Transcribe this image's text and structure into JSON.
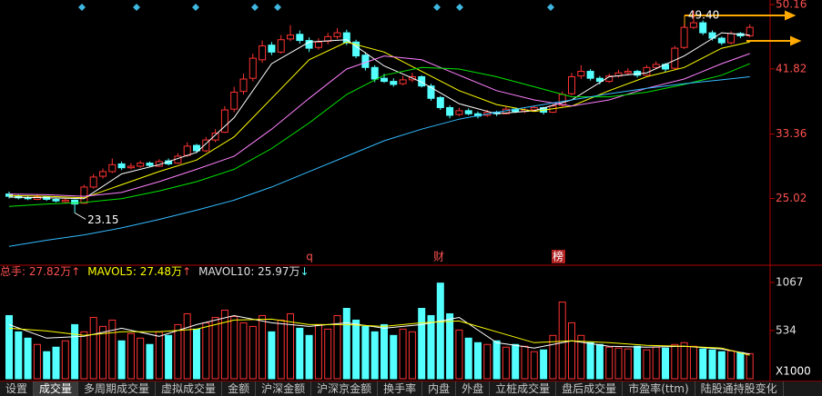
{
  "chart_data": [
    {
      "type": "candlestick",
      "open": [
        25.6,
        25.3,
        25.1,
        24.9,
        25.2,
        24.9,
        24.6,
        24.8,
        24.4,
        26.5,
        27.9,
        28.5,
        29.5,
        29.0,
        29.2,
        29.6,
        29.2,
        29.9,
        29.6,
        30.6,
        31.9,
        31.2,
        32.6,
        33.6,
        36.6,
        38.9,
        40.6,
        43.0,
        44.9,
        44.0,
        45.7,
        46.3,
        45.5,
        44.6,
        45.4,
        46.0,
        46.5,
        45.3,
        43.6,
        42.0,
        40.6,
        40.2,
        39.9,
        40.4,
        40.8,
        39.6,
        38.1,
        36.8,
        35.9,
        36.4,
        36.0,
        35.8,
        36.2,
        36.0,
        36.6,
        36.3,
        36.5,
        36.8,
        36.2,
        37.1,
        38.6,
        40.9,
        41.5,
        40.6,
        40.2,
        40.9,
        41.3,
        41.5,
        41.0,
        42.0,
        42.4,
        41.9,
        44.6,
        47.2,
        47.8,
        46.5,
        45.8,
        45.2,
        46.4,
        46.1
      ],
      "high": [
        25.9,
        25.5,
        25.4,
        25.5,
        25.3,
        25.1,
        25.0,
        24.9,
        26.8,
        28.2,
        28.9,
        30.2,
        29.8,
        29.6,
        29.9,
        29.8,
        30.1,
        30.2,
        30.9,
        32.3,
        32.1,
        33.0,
        34.0,
        37.0,
        39.5,
        41.2,
        43.8,
        45.5,
        45.3,
        46.2,
        47.5,
        46.8,
        45.9,
        45.8,
        46.5,
        47.1,
        46.9,
        45.6,
        44.0,
        42.3,
        41.2,
        40.6,
        40.9,
        41.3,
        41.0,
        39.9,
        38.3,
        37.1,
        36.8,
        36.7,
        36.3,
        36.5,
        36.4,
        36.9,
        36.8,
        36.8,
        37.1,
        36.9,
        37.3,
        38.9,
        41.3,
        42.3,
        41.8,
        40.9,
        41.2,
        41.7,
        41.9,
        41.7,
        42.3,
        42.8,
        42.6,
        44.8,
        47.6,
        49.4,
        48.1,
        46.8,
        46.0,
        46.7,
        46.6,
        47.6
      ],
      "low": [
        25.0,
        24.9,
        24.8,
        24.8,
        24.7,
        24.5,
        24.4,
        23.15,
        24.3,
        26.3,
        27.6,
        28.3,
        28.7,
        28.8,
        29.0,
        29.1,
        29.1,
        29.3,
        29.5,
        30.4,
        30.9,
        31.0,
        32.3,
        33.5,
        36.2,
        38.5,
        40.2,
        42.6,
        43.6,
        43.8,
        45.4,
        45.1,
        44.0,
        44.3,
        45.0,
        45.7,
        44.9,
        43.2,
        41.6,
        40.1,
        40.0,
        39.5,
        39.7,
        40.1,
        39.4,
        37.7,
        36.5,
        35.4,
        35.7,
        35.8,
        35.4,
        35.6,
        35.7,
        35.9,
        36.1,
        36.1,
        36.3,
        35.9,
        36.1,
        36.9,
        38.4,
        40.5,
        40.3,
        39.8,
        40.0,
        40.7,
        41.0,
        40.7,
        40.9,
        41.8,
        41.4,
        41.7,
        44.4,
        47.0,
        46.2,
        45.5,
        44.9,
        45.0,
        45.8,
        45.9
      ],
      "close": [
        25.3,
        25.1,
        25.0,
        25.2,
        24.9,
        24.7,
        24.8,
        24.3,
        26.5,
        27.8,
        28.5,
        29.4,
        29.0,
        29.2,
        29.6,
        29.3,
        29.8,
        29.5,
        30.5,
        31.8,
        31.2,
        32.6,
        33.5,
        36.5,
        38.8,
        40.5,
        43.2,
        44.8,
        44.0,
        45.6,
        46.2,
        45.5,
        44.5,
        45.3,
        46.0,
        46.5,
        45.2,
        43.5,
        42.0,
        40.5,
        40.2,
        39.8,
        40.4,
        40.8,
        39.6,
        38.0,
        36.8,
        35.8,
        36.4,
        36.0,
        35.7,
        36.2,
        36.0,
        36.6,
        36.3,
        36.5,
        36.8,
        36.2,
        37.0,
        38.5,
        40.8,
        41.5,
        40.6,
        40.2,
        40.9,
        41.3,
        41.5,
        41.0,
        42.0,
        42.4,
        41.8,
        44.5,
        47.2,
        47.8,
        46.5,
        45.8,
        45.2,
        46.4,
        46.1,
        47.2
      ],
      "up_color": "#ff3232",
      "down_color": "#54ffff",
      "ylim": [
        16.6,
        50.75
      ],
      "yticks": [
        {
          "value": 50.16,
          "label": "50.16"
        },
        {
          "value": 41.82,
          "label": "41.82"
        },
        {
          "value": 33.36,
          "label": "33.36"
        },
        {
          "value": 25.02,
          "label": "25.02"
        }
      ],
      "ma_lines": [
        {
          "color": "#ffffff",
          "x": [
            0,
            4,
            8,
            12,
            16,
            20,
            24,
            28,
            32,
            36,
            40,
            44,
            48,
            52,
            56,
            60,
            64,
            68,
            72,
            76,
            79
          ],
          "values": [
            25.2,
            25.1,
            25.0,
            28.2,
            29.4,
            31.0,
            35.5,
            42.5,
            45.3,
            45.6,
            42.2,
            40.1,
            37.3,
            36.0,
            36.4,
            37.8,
            40.8,
            41.3,
            43.5,
            46.5,
            46.2
          ]
        },
        {
          "color": "#ffff00",
          "x": [
            0,
            4,
            8,
            12,
            16,
            20,
            24,
            28,
            32,
            36,
            40,
            44,
            48,
            52,
            56,
            60,
            64,
            68,
            72,
            76,
            79
          ],
          "values": [
            25.4,
            25.3,
            25.1,
            26.8,
            28.5,
            30.0,
            33.0,
            38.0,
            43.0,
            45.3,
            44.0,
            41.5,
            39.0,
            37.2,
            36.3,
            37.0,
            39.0,
            40.8,
            42.0,
            44.5,
            45.3
          ]
        },
        {
          "color": "#ff80ff",
          "x": [
            0,
            4,
            8,
            12,
            16,
            20,
            24,
            28,
            32,
            36,
            40,
            44,
            48,
            52,
            56,
            60,
            64,
            68,
            72,
            76,
            79
          ],
          "values": [
            25.6,
            25.5,
            25.3,
            25.8,
            27.2,
            28.8,
            30.5,
            34.0,
            38.0,
            41.8,
            43.5,
            43.0,
            41.0,
            39.0,
            37.8,
            37.0,
            37.8,
            39.3,
            40.5,
            42.5,
            43.8
          ]
        },
        {
          "color": "#00e600",
          "x": [
            0,
            4,
            8,
            12,
            16,
            20,
            24,
            28,
            32,
            36,
            40,
            44,
            48,
            52,
            56,
            60,
            64,
            68,
            72,
            76,
            79
          ],
          "values": [
            24.0,
            24.3,
            24.5,
            25.0,
            26.0,
            27.2,
            28.8,
            31.5,
            34.8,
            38.5,
            41.0,
            42.0,
            41.8,
            40.8,
            39.5,
            38.2,
            38.2,
            38.8,
            39.8,
            41.0,
            42.5
          ]
        },
        {
          "color": "#33bbff",
          "x": [
            0,
            4,
            8,
            12,
            16,
            20,
            24,
            28,
            32,
            36,
            40,
            44,
            48,
            52,
            56,
            60,
            64,
            68,
            72,
            76,
            79
          ],
          "values": [
            18.8,
            19.6,
            20.3,
            21.2,
            22.3,
            23.5,
            24.8,
            26.5,
            28.5,
            30.5,
            32.5,
            34.0,
            35.3,
            36.2,
            37.0,
            37.8,
            38.6,
            39.3,
            39.9,
            40.4,
            40.8
          ]
        }
      ],
      "high_label": "49.40",
      "low_label": "23.15",
      "markers": [
        "q",
        "财",
        "榜"
      ]
    },
    {
      "type": "bar",
      "header": [
        {
          "text": "总手: 27.82万",
          "arrow": "↑",
          "color": "#ff5050",
          "arrow_color": "#ff5050"
        },
        {
          "text": "MAVOL5: 27.48万",
          "arrow": "↑",
          "color": "#ffff00",
          "arrow_color": "#ff5050"
        },
        {
          "text": "MAVOL10: 25.97万",
          "arrow": "↓",
          "color": "#e0e0e0",
          "arrow_color": "#54ffff"
        }
      ],
      "values": [
        700,
        520,
        450,
        380,
        300,
        350,
        420,
        600,
        520,
        680,
        580,
        650,
        420,
        500,
        450,
        380,
        520,
        480,
        600,
        720,
        550,
        620,
        680,
        760,
        690,
        620,
        580,
        700,
        520,
        650,
        720,
        560,
        480,
        600,
        550,
        700,
        780,
        650,
        580,
        520,
        600,
        480,
        550,
        520,
        780,
        700,
        1060,
        720,
        540,
        450,
        400,
        380,
        420,
        350,
        380,
        360,
        300,
        320,
        480,
        850,
        620,
        480,
        400,
        380,
        350,
        340,
        330,
        360,
        320,
        350,
        340,
        380,
        400,
        360,
        330,
        320,
        300,
        310,
        290,
        278.2
      ],
      "ylim": [
        0,
        1208
      ],
      "yticks": [
        1067,
        534
      ],
      "unit_label": "X1000",
      "ma_lines": [
        {
          "color": "#ffffff",
          "x": [
            0,
            4,
            8,
            12,
            16,
            20,
            24,
            28,
            32,
            36,
            40,
            44,
            48,
            52,
            56,
            60,
            64,
            68,
            72,
            76,
            79
          ],
          "values": [
            600,
            450,
            470,
            560,
            470,
            600,
            700,
            620,
            580,
            620,
            560,
            600,
            680,
            400,
            340,
            420,
            360,
            350,
            360,
            330,
            274.8
          ]
        },
        {
          "color": "#ffff00",
          "x": [
            0,
            4,
            8,
            12,
            16,
            20,
            24,
            28,
            32,
            36,
            40,
            44,
            48,
            52,
            56,
            60,
            64,
            68,
            72,
            76,
            79
          ],
          "values": [
            560,
            530,
            480,
            520,
            520,
            550,
            650,
            660,
            600,
            600,
            580,
            620,
            640,
            520,
            400,
            420,
            400,
            370,
            360,
            340,
            259.7
          ]
        }
      ]
    }
  ],
  "tabs": [
    "设置",
    "成交量",
    "多周期成交量",
    "虚拟成交量",
    "金额",
    "沪深金额",
    "沪深京金额",
    "换手率",
    "内盘",
    "外盘",
    "立桩成交量",
    "盘后成交量",
    "市盈率(ttm)",
    "陆股通持股变化"
  ]
}
